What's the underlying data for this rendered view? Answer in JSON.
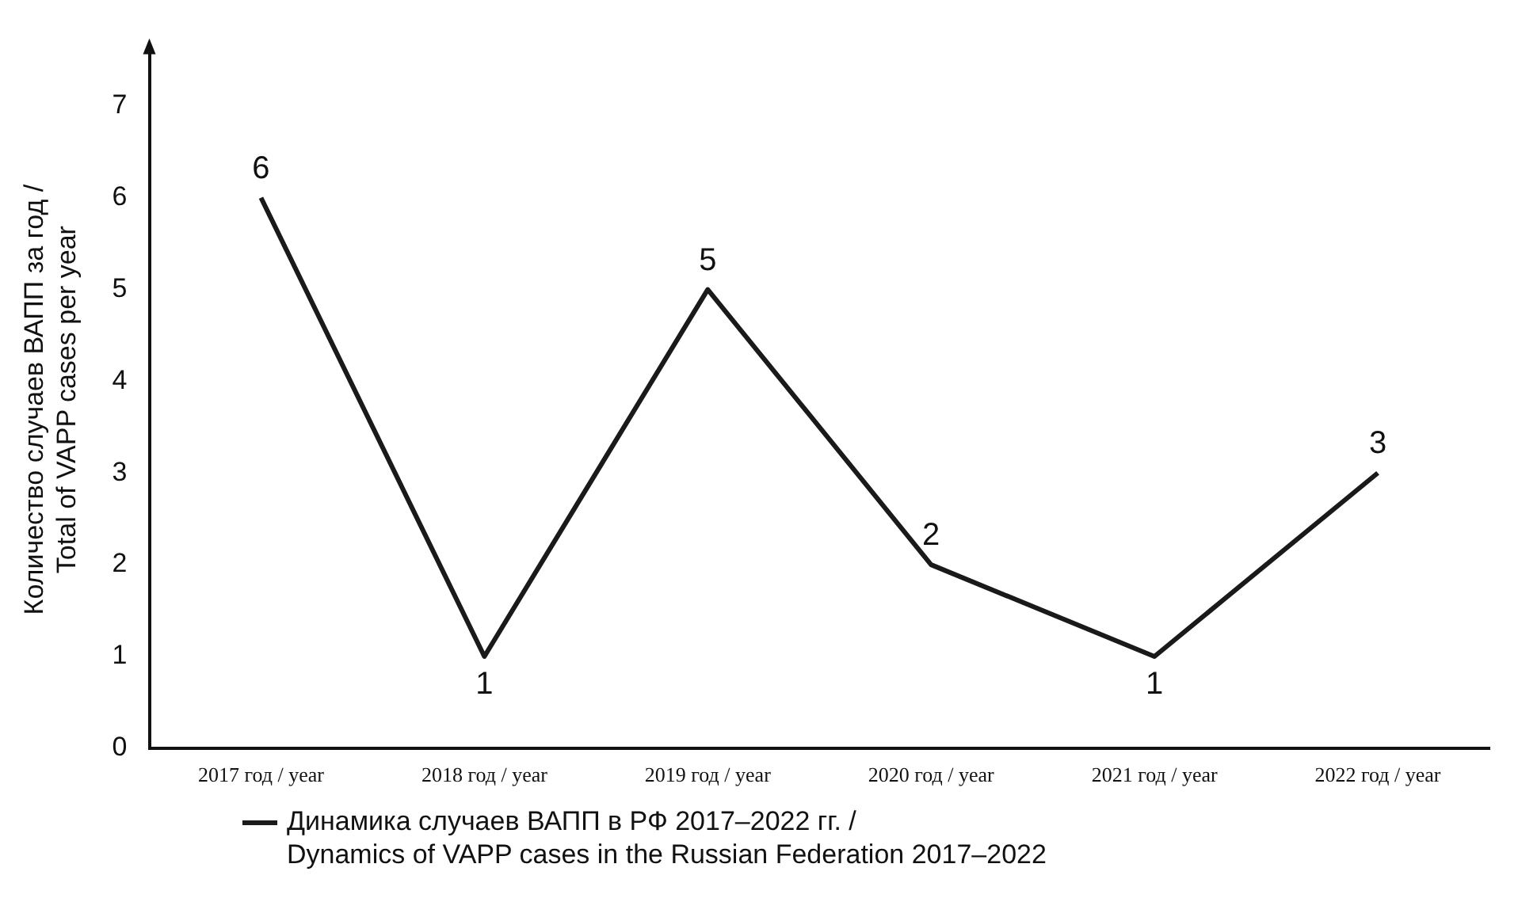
{
  "chart_data": {
    "type": "line",
    "ylabel": "Количество случаев ВАПП за год /\nTotal of VAPP cases per year",
    "categories": [
      "2017 год / year",
      "2018 год / year",
      "2019 год / year",
      "2020 год / year",
      "2021 год / year",
      "2022 год / year"
    ],
    "series": [
      {
        "name": "Динамика случаев ВАПП в РФ 2017–2022 гг. /\nDynamics of VAPP cases in the Russian Federation 2017–2022",
        "color": "#1a1a1a",
        "values": [
          6,
          1,
          5,
          2,
          1,
          3
        ]
      }
    ],
    "ylim": [
      0,
      7.6
    ],
    "yticks": [
      0,
      1,
      2,
      3,
      4,
      5,
      6,
      7
    ],
    "grid": false,
    "legend": "bottom",
    "data_labels": true,
    "marker": "none",
    "line_style": "solid"
  }
}
